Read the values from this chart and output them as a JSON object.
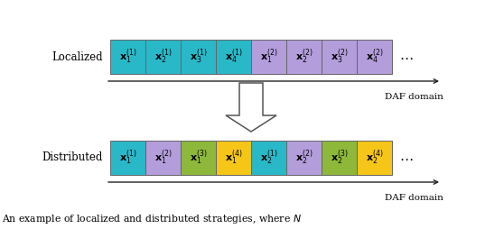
{
  "localized_label": "Localized",
  "distributed_label": "Distributed",
  "daf_domain_label": "DAF domain",
  "caption": "An example of localized and distributed strategies, where $N$",
  "localized_colors": [
    "#29b8c8",
    "#29b8c8",
    "#29b8c8",
    "#29b8c8",
    "#b39ddb",
    "#b39ddb",
    "#b39ddb",
    "#b39ddb"
  ],
  "distributed_colors": [
    "#29b8c8",
    "#b39ddb",
    "#8db83a",
    "#f5c518",
    "#29b8c8",
    "#b39ddb",
    "#8db83a",
    "#f5c518"
  ],
  "localized_subs": [
    "1",
    "2",
    "3",
    "4",
    "1",
    "2",
    "3",
    "4"
  ],
  "localized_sups": [
    "1",
    "1",
    "1",
    "1",
    "2",
    "2",
    "2",
    "2"
  ],
  "distributed_subs": [
    "1",
    "1",
    "1",
    "1",
    "2",
    "2",
    "2",
    "2"
  ],
  "distributed_sups": [
    "1",
    "2",
    "3",
    "4",
    "1",
    "2",
    "3",
    "4"
  ],
  "fig_width": 5.58,
  "fig_height": 2.54,
  "dpi": 100,
  "background_color": "#ffffff",
  "box_edge_color": "#666666",
  "arrow_color": "#222222",
  "text_fontsize": 8.0,
  "label_fontsize": 8.5,
  "caption_fontsize": 7.8
}
